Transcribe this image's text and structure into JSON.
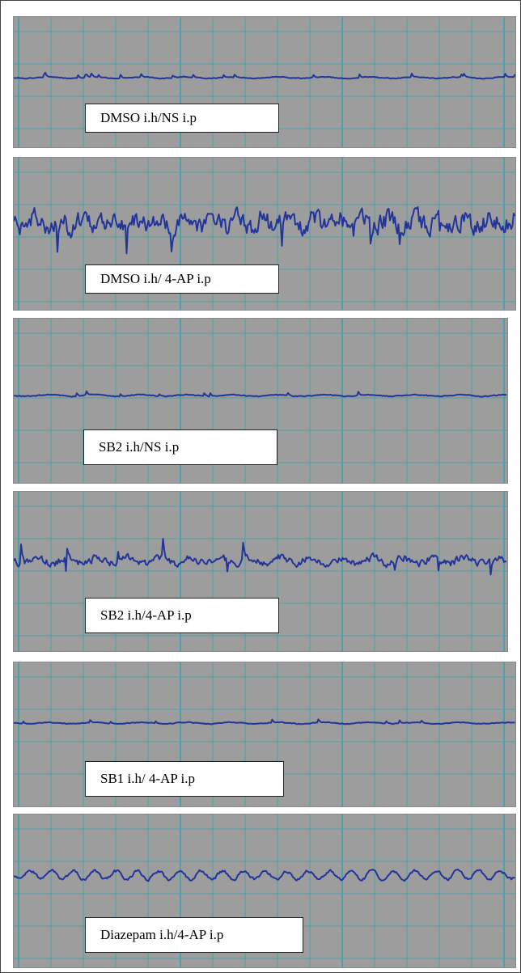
{
  "colors": {
    "panel_background": "#9d9d9d",
    "grid": "#4fa1a8",
    "trace": "#23349a",
    "label_background": "#ffffff"
  },
  "chart_data": [
    {
      "type": "line",
      "name": "eeg-trace",
      "label": "DMSO i.h/NS i.p",
      "pattern": "baseline",
      "amplitude": 0.35,
      "grid": true,
      "x_unit": "time"
    },
    {
      "type": "line",
      "name": "eeg-trace",
      "label": "DMSO i.h/ 4-AP  i.p",
      "pattern": "seizure",
      "amplitude": 1.0,
      "grid": true,
      "x_unit": "time"
    },
    {
      "type": "line",
      "name": "eeg-trace",
      "label": "SB2 i.h/NS i.p",
      "pattern": "baseline",
      "amplitude": 0.4,
      "grid": true,
      "x_unit": "time"
    },
    {
      "type": "line",
      "name": "eeg-trace",
      "label": "SB2 i.h/4-AP  i.p",
      "pattern": "spiky",
      "amplitude": 0.8,
      "grid": true,
      "x_unit": "time"
    },
    {
      "type": "line",
      "name": "eeg-trace",
      "label": "SB1 i.h/ 4-AP  i.p",
      "pattern": "baseline",
      "amplitude": 0.35,
      "grid": true,
      "x_unit": "time"
    },
    {
      "type": "line",
      "name": "eeg-trace",
      "label": "Diazepam i.h/4-AP  i.p",
      "pattern": "rhythmic",
      "amplitude": 0.55,
      "grid": true,
      "x_unit": "time"
    }
  ]
}
